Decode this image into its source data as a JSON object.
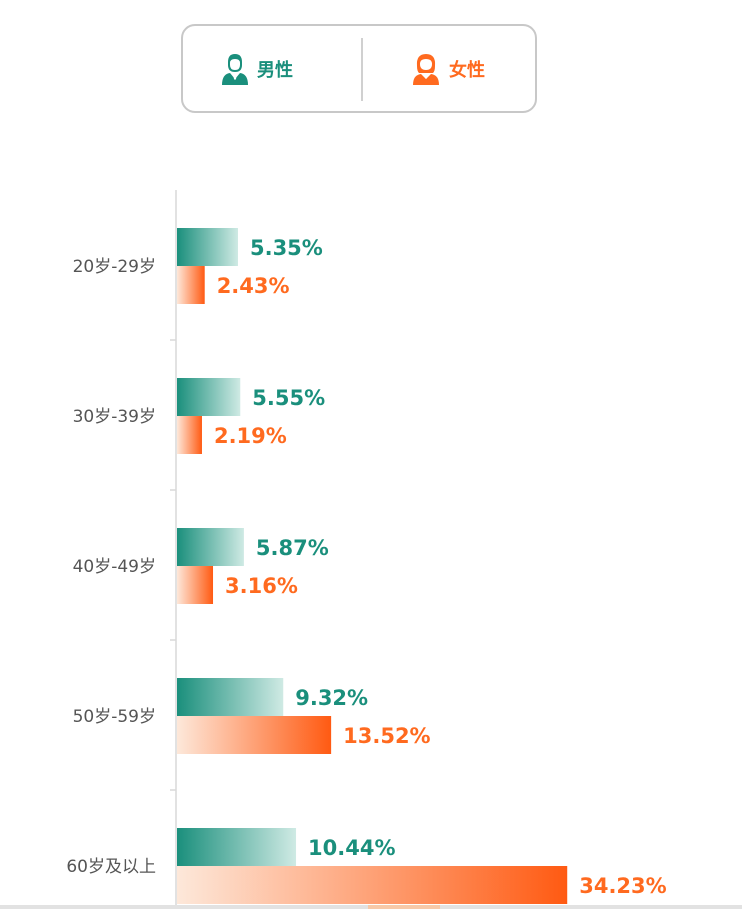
{
  "legend": {
    "male_label": "男性",
    "female_label": "女性",
    "male_icon": "male-person-icon",
    "female_icon": "female-person-icon"
  },
  "colors": {
    "male": "#1a8f7c",
    "male_light": "#d2ece6",
    "female": "#ff6a1f",
    "female_light": "#fde6d8",
    "axis": "#d9d9d9",
    "category_text": "#555555"
  },
  "chart_data": {
    "type": "bar",
    "orientation": "horizontal",
    "categories": [
      "20岁-29岁",
      "30岁-39岁",
      "40岁-49岁",
      "50岁-59岁",
      "60岁及以上"
    ],
    "series": [
      {
        "name": "男性",
        "values": [
          5.35,
          5.55,
          5.87,
          9.32,
          10.44
        ],
        "labels": [
          "5.35%",
          "5.55%",
          "5.87%",
          "9.32%",
          "10.44%"
        ]
      },
      {
        "name": "女性",
        "values": [
          2.43,
          2.19,
          3.16,
          13.52,
          34.23
        ],
        "labels": [
          "2.43%",
          "2.19%",
          "3.16%",
          "13.52%",
          "34.23%"
        ]
      }
    ],
    "unit": "%",
    "legend_position": "top-center",
    "grid": false
  }
}
